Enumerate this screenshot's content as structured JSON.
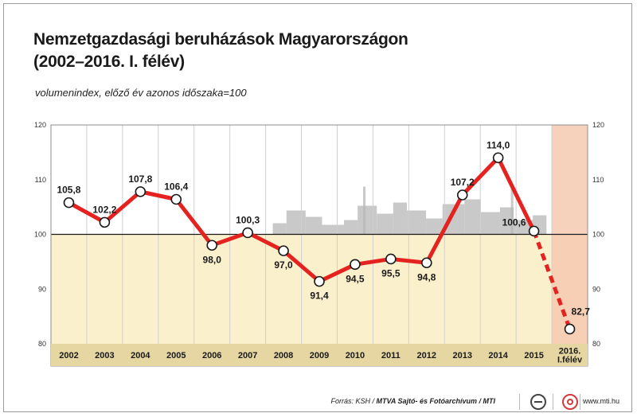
{
  "title_line1": "Nemzetgazdasági beruházások Magyarországon",
  "title_line2": "(2002–2016. I. félév)",
  "subtitle": "volumenindex, előző év azonos időszaka=100",
  "chart_data": {
    "type": "line",
    "categories": [
      "2002",
      "2003",
      "2004",
      "2005",
      "2006",
      "2007",
      "2008",
      "2009",
      "2010",
      "2011",
      "2012",
      "2013",
      "2014",
      "2015",
      "2016. I.félév"
    ],
    "category_lines": [
      [
        "2002"
      ],
      [
        "2003"
      ],
      [
        "2004"
      ],
      [
        "2005"
      ],
      [
        "2006"
      ],
      [
        "2007"
      ],
      [
        "2008"
      ],
      [
        "2009"
      ],
      [
        "2010"
      ],
      [
        "2011"
      ],
      [
        "2012"
      ],
      [
        "2013"
      ],
      [
        "2014"
      ],
      [
        "2015"
      ],
      [
        "2016.",
        "I.félév"
      ]
    ],
    "values": [
      105.8,
      102.2,
      107.8,
      106.4,
      98.0,
      100.3,
      97.0,
      91.4,
      94.5,
      95.5,
      94.8,
      107.2,
      114.0,
      100.6,
      82.7
    ],
    "value_labels": [
      "105,8",
      "102,2",
      "107,8",
      "106,4",
      "98,0",
      "100,3",
      "97,0",
      "91,4",
      "94,5",
      "95,5",
      "94,8",
      "107,2",
      "114,0",
      "100,6",
      "82,7"
    ],
    "label_positions": [
      "above",
      "above",
      "above",
      "above",
      "below",
      "above",
      "below",
      "below",
      "below",
      "below",
      "below",
      "above",
      "above",
      "left",
      "above-right"
    ],
    "dashed_last_segment": true,
    "highlighted_last_category": true,
    "baseline": 100,
    "ylim": [
      80,
      120
    ],
    "yticks": [
      80,
      90,
      100,
      110,
      120
    ],
    "grid": "vertical",
    "colors": {
      "line": "#e42320",
      "marker_fill": "#ffffff",
      "marker_stroke": "#1a1a1a",
      "upper_bg": "#ffffff",
      "lower_bg": "#fbf0cc",
      "highlight_band": "#f5c9b0",
      "category_bar": "#e6d7a2",
      "skyline": "#b7b7b7"
    }
  },
  "footer": {
    "source_prefix": "Forrás: KSH / ",
    "source_bold": "MTVA Sajtó- és Fotóarchívum / MTI",
    "logo_mtva": "mtva-logo",
    "logo_mti": "mti-logo",
    "site": "www.mti.hu"
  }
}
